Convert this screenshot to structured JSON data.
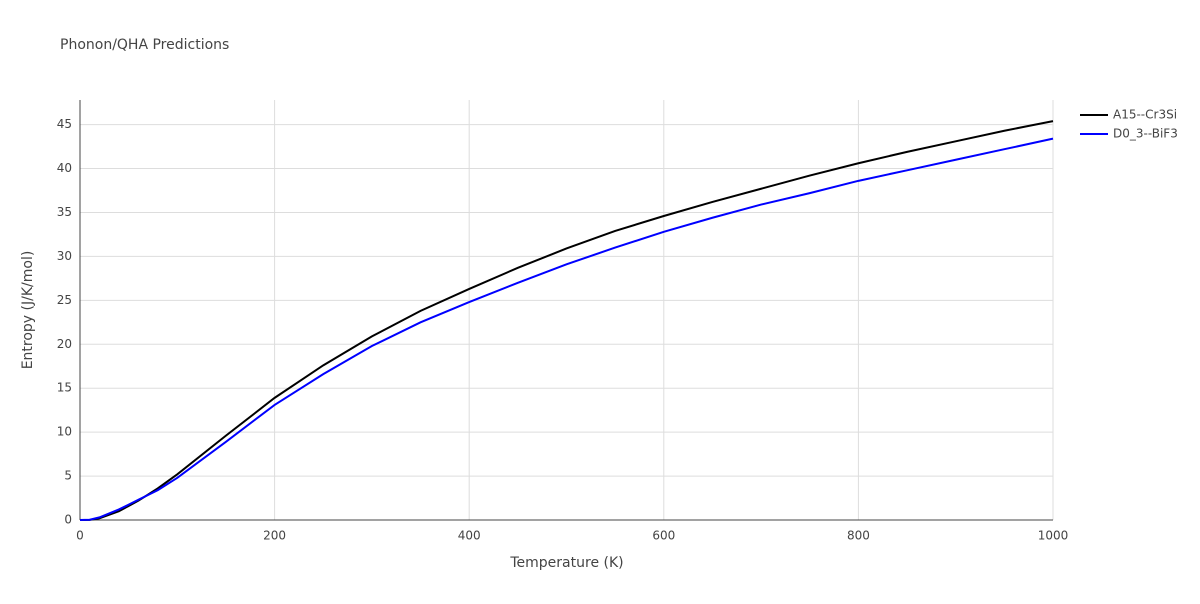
{
  "chart_data": {
    "type": "line",
    "title": "Phonon/QHA Predictions",
    "x_label": "Temperature (K)",
    "y_label": "Entropy (J/K/mol)",
    "x": [
      0,
      10,
      20,
      40,
      60,
      80,
      100,
      150,
      200,
      250,
      300,
      350,
      400,
      450,
      500,
      550,
      600,
      650,
      700,
      750,
      800,
      850,
      900,
      950,
      1000
    ],
    "series": [
      {
        "name": "A15--Cr3Si",
        "color": "#000000",
        "values": [
          0,
          0.02,
          0.2,
          1.0,
          2.2,
          3.6,
          5.2,
          9.6,
          13.9,
          17.6,
          20.9,
          23.8,
          26.3,
          28.7,
          30.9,
          32.9,
          34.6,
          36.2,
          37.7,
          39.2,
          40.6,
          41.9,
          43.1,
          44.3,
          45.4
        ]
      },
      {
        "name": "D0_3--BiF3",
        "color": "#0000ff",
        "values": [
          0,
          0.03,
          0.3,
          1.2,
          2.3,
          3.4,
          4.8,
          8.9,
          13.1,
          16.6,
          19.8,
          22.5,
          24.8,
          27.0,
          29.1,
          31.0,
          32.8,
          34.4,
          35.9,
          37.2,
          38.6,
          39.8,
          41.0,
          42.2,
          43.4
        ]
      }
    ],
    "xlim": [
      0,
      1000
    ],
    "xticks": [
      0,
      200,
      400,
      600,
      800,
      1000
    ],
    "ylim": [
      0,
      47.8
    ],
    "yticks": [
      0,
      5,
      10,
      15,
      20,
      25,
      30,
      35,
      40,
      45
    ],
    "grid": true,
    "legend": "right"
  }
}
